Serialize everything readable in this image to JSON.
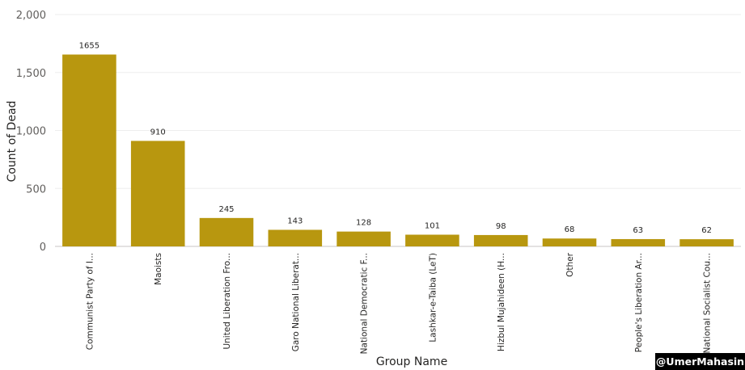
{
  "chart_data": {
    "type": "bar",
    "categories": [
      "Communist Party of I...",
      "Maoists",
      "United Liberation Fro...",
      "Garo National Liberat...",
      "National Democratic F...",
      "Lashkar-e-Taiba (LeT)",
      "Hizbul Mujahideen (H...",
      "Other",
      "People's Liberation Ar...",
      "National Socialist Cou..."
    ],
    "values": [
      1655,
      910,
      245,
      143,
      128,
      101,
      98,
      68,
      63,
      62
    ],
    "data_labels": [
      "1655",
      "910",
      "245",
      "143",
      "128",
      "101",
      "98",
      "68",
      "63",
      "62"
    ],
    "xlabel": "Group Name",
    "ylabel": "Count of Dead",
    "ylim": [
      0,
      2000
    ],
    "y_ticks": [
      0,
      500,
      1000,
      1500,
      2000
    ],
    "y_tick_labels": [
      "0",
      "500",
      "1,000",
      "1,500",
      "2,000"
    ],
    "grid": true,
    "bar_color": "#b8970f"
  },
  "watermark": "@UmerMahasin"
}
